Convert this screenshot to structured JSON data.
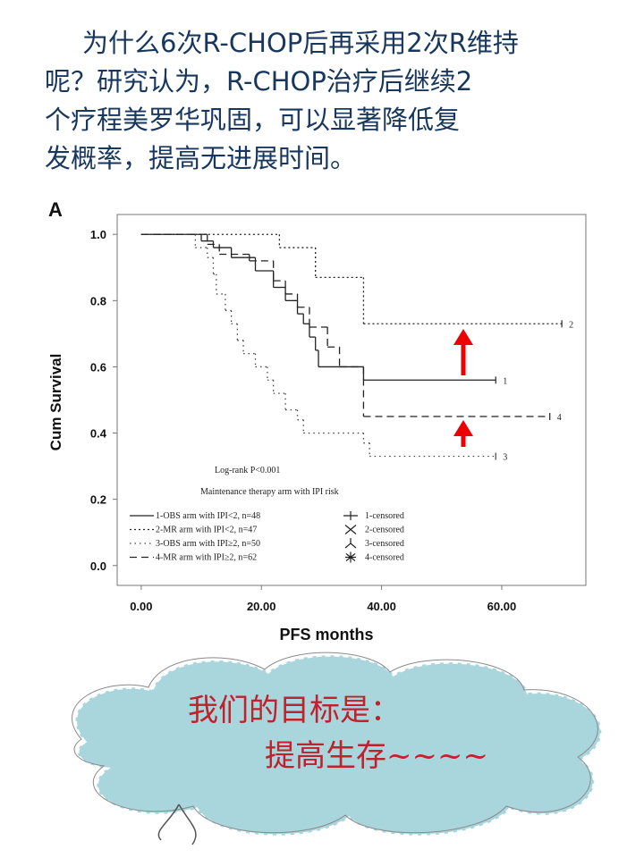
{
  "slide": {
    "lines": [
      "为什么6次R-CHOP后再采用2次R维持",
      "呢？研究认为，R-CHOP治疗后继续2",
      "个疗程美罗华巩固，可以显著降低复",
      "发概率，提高无进展时间。"
    ]
  },
  "chart_data": {
    "type": "step",
    "panel_label": "A",
    "x_label": "PFS months",
    "y_label": "Cum Survival",
    "annotations": [
      "Log-rank P<0.001",
      "Maintenance therapy arm with IPI risk"
    ],
    "xlim": [
      -4,
      74
    ],
    "ylim": [
      -0.06,
      1.06
    ],
    "xticks": [
      {
        "value": 0,
        "label": "0.00"
      },
      {
        "value": 20,
        "label": "20.00"
      },
      {
        "value": 40,
        "label": "40.00"
      },
      {
        "value": 60,
        "label": "60.00"
      }
    ],
    "yticks": [
      {
        "value": 0,
        "label": "0.0"
      },
      {
        "value": 0.2,
        "label": "0.2"
      },
      {
        "value": 0.4,
        "label": "0.4"
      },
      {
        "value": 0.6,
        "label": "0.6"
      },
      {
        "value": 0.8,
        "label": "0.8"
      },
      {
        "value": 1,
        "label": "1.0"
      }
    ],
    "series": [
      {
        "name": "1-OBS arm with IPI<2, n=48",
        "end_label": "1",
        "color": "#222222",
        "line_style": "solid",
        "x": [
          0,
          10,
          12,
          15,
          19,
          22,
          24,
          26,
          27,
          28,
          29,
          29.5,
          37,
          59
        ],
        "values": [
          1.0,
          0.98,
          0.96,
          0.93,
          0.89,
          0.84,
          0.8,
          0.76,
          0.73,
          0.69,
          0.65,
          0.6,
          0.56,
          0.56
        ]
      },
      {
        "name": "2-MR arm with IPI<2, n=47",
        "end_label": "2",
        "color": "#222222",
        "line_style": "dotted",
        "x": [
          0,
          23,
          29,
          37,
          70
        ],
        "values": [
          1.0,
          0.96,
          0.87,
          0.73,
          0.73
        ]
      },
      {
        "name": "3-OBS arm with IPI≥2, n=50",
        "end_label": "3",
        "color": "#444444",
        "line_style": "fine",
        "x": [
          0,
          8,
          9,
          11,
          12,
          12.5,
          14,
          15,
          16,
          17,
          19,
          21,
          22,
          24,
          26,
          27,
          37,
          38,
          59
        ],
        "values": [
          1.0,
          1.0,
          0.96,
          0.93,
          0.88,
          0.82,
          0.77,
          0.73,
          0.68,
          0.64,
          0.6,
          0.56,
          0.52,
          0.47,
          0.44,
          0.4,
          0.37,
          0.33,
          0.33
        ]
      },
      {
        "name": "4-MR arm with IPI≥2, n=62",
        "end_label": "4",
        "color": "#222222",
        "line_style": "dashed",
        "x": [
          0,
          10,
          11,
          13,
          18,
          22,
          24,
          26,
          28,
          31,
          33,
          37,
          68
        ],
        "values": [
          1.0,
          1.0,
          0.97,
          0.94,
          0.92,
          0.86,
          0.82,
          0.78,
          0.72,
          0.66,
          0.6,
          0.45,
          0.45
        ]
      }
    ],
    "censored_labels": [
      "1-censored",
      "2-censored",
      "3-censored",
      "4-censored"
    ]
  },
  "callout": {
    "lines": [
      "我们的目标是：",
      "提高生存~~~~"
    ]
  }
}
